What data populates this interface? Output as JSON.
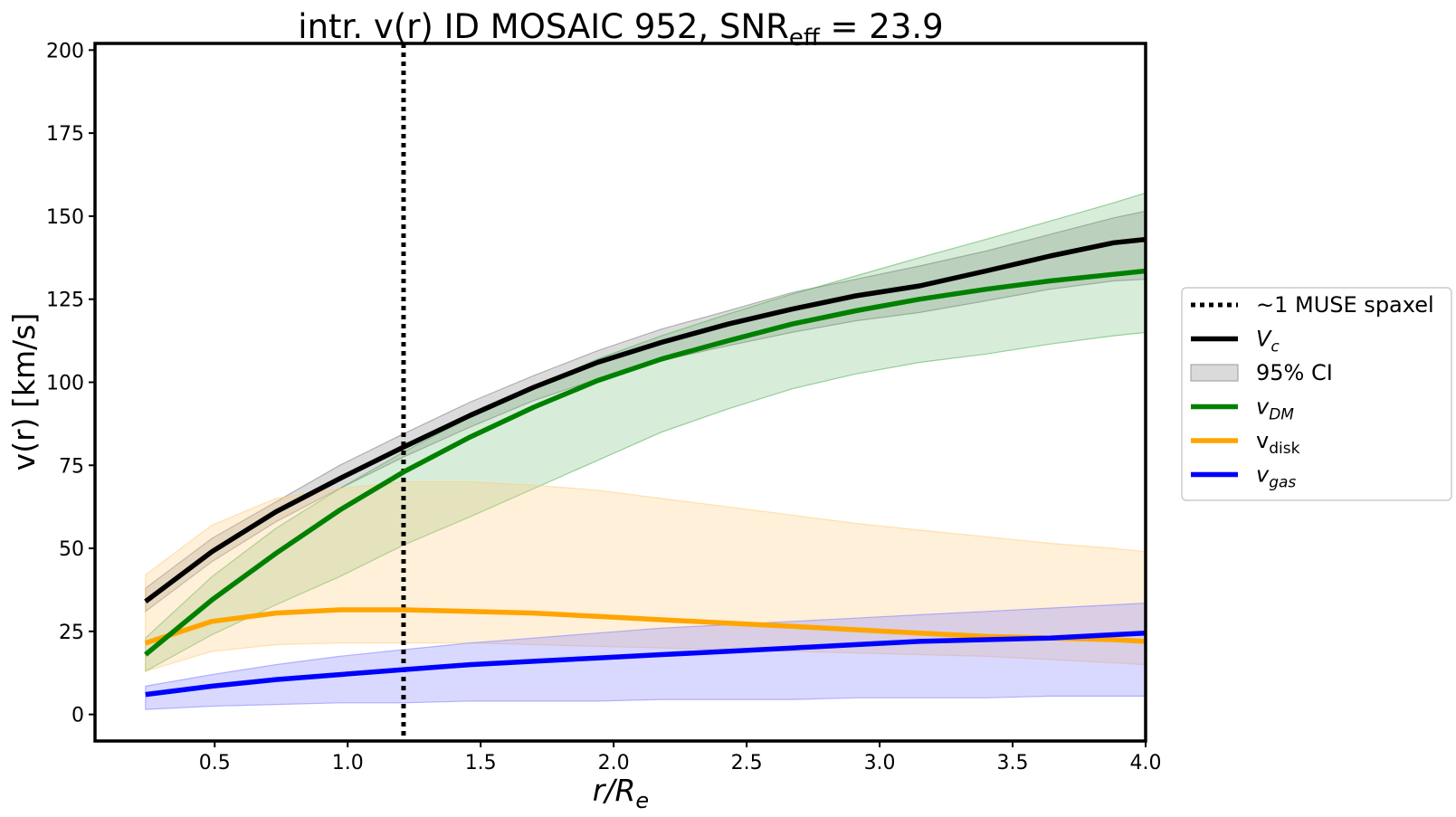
{
  "chart_data": {
    "type": "line",
    "title": "intr. v(r) ID MOSAIC 952, SNR",
    "title_snr_subscript": "eff",
    "title_snr_value": " = 23.9",
    "xlabel_main": "r/R",
    "xlabel_sub": "e",
    "ylabel": "v(r) [km/s]",
    "xlim": [
      0.05,
      4.0
    ],
    "ylim": [
      -8,
      202
    ],
    "xticks": [
      0.5,
      1.0,
      1.5,
      2.0,
      2.5,
      3.0,
      3.5,
      4.0
    ],
    "xtick_labels": [
      "0.5",
      "1.0",
      "1.5",
      "2.0",
      "2.5",
      "3.0",
      "3.5",
      "4.0"
    ],
    "yticks": [
      0,
      25,
      50,
      75,
      100,
      125,
      150,
      175,
      200
    ],
    "ytick_labels": [
      "0",
      "25",
      "50",
      "75",
      "100",
      "125",
      "150",
      "175",
      "200"
    ],
    "x": [
      0.24,
      0.49,
      0.73,
      0.97,
      1.21,
      1.46,
      1.7,
      1.94,
      2.18,
      2.43,
      2.67,
      2.91,
      3.15,
      3.4,
      3.64,
      3.88,
      4.0
    ],
    "muse_spaxel_x": 1.21,
    "series": [
      {
        "name": "V_c",
        "color": "#000000",
        "values": [
          34,
          49,
          61,
          71,
          80.5,
          90,
          98.5,
          106,
          112,
          117.5,
          122,
          126,
          129,
          133.5,
          138,
          142,
          143
        ],
        "lower": [
          31,
          46,
          58,
          68,
          77.5,
          86.5,
          94.5,
          101,
          106.5,
          111,
          115,
          118.5,
          121,
          124.5,
          128,
          130.5,
          131
        ],
        "upper": [
          38,
          53,
          64,
          75,
          84.5,
          94,
          102,
          109.5,
          116,
          121.5,
          127,
          131,
          135,
          139.5,
          144.5,
          149.5,
          151.5
        ]
      },
      {
        "name": "v_DM",
        "color": "#008000",
        "values": [
          18,
          34.5,
          48.5,
          61.5,
          73,
          83.5,
          92.5,
          100.5,
          107,
          112.5,
          117.5,
          121.5,
          125,
          128,
          130.5,
          132.5,
          133.5
        ],
        "lower": [
          13,
          24,
          33,
          41.5,
          51,
          59.5,
          68,
          76.5,
          85,
          92,
          98,
          102.5,
          106,
          108.5,
          111.5,
          114,
          115
        ],
        "upper": [
          23,
          41.5,
          56,
          68,
          79,
          89.5,
          98.5,
          107,
          114,
          120.5,
          126.5,
          132,
          137.5,
          143,
          148.5,
          154,
          157
        ]
      },
      {
        "name": "v_disk",
        "color": "#FFA500",
        "values": [
          21.5,
          28,
          30.5,
          31.5,
          31.5,
          31,
          30.5,
          29.5,
          28.5,
          27.5,
          26.5,
          25.5,
          24.5,
          23.5,
          23,
          22.5,
          22
        ],
        "lower": [
          13,
          19,
          21,
          21.5,
          21.5,
          21.5,
          21,
          20.5,
          20,
          19.5,
          19,
          18.5,
          18,
          17.5,
          16.5,
          15.5,
          15
        ],
        "upper": [
          42,
          57,
          65,
          68,
          70,
          70,
          69,
          67.5,
          65,
          62.5,
          60,
          57.5,
          55.5,
          53.5,
          51.5,
          50,
          49
        ]
      },
      {
        "name": "v_gas",
        "color": "#0000FF",
        "values": [
          6,
          8.5,
          10.5,
          12,
          13.5,
          15,
          16,
          17,
          18,
          19,
          20,
          21,
          22,
          22.5,
          23,
          24,
          24.5
        ],
        "lower": [
          1.5,
          2.5,
          3,
          3.5,
          3.5,
          4,
          4,
          4,
          4.5,
          4.5,
          4.5,
          5,
          5,
          5,
          5.5,
          5.5,
          5.5
        ],
        "upper": [
          8.5,
          12,
          15,
          17.5,
          19.5,
          21.5,
          23,
          24.5,
          26,
          27,
          28,
          29,
          30,
          31,
          32,
          33,
          33.5
        ]
      }
    ],
    "legend": {
      "placement": "right-outside",
      "entries": [
        {
          "label": "~1 MUSE spaxel",
          "kind": "dotted-line",
          "color": "#000000"
        },
        {
          "label": "V",
          "sub": "c",
          "italic": true,
          "kind": "line",
          "color": "#000000"
        },
        {
          "label": "95% CI",
          "kind": "patch",
          "color": "#BBBBBB"
        },
        {
          "label": "v",
          "sub": "DM",
          "italic": true,
          "kind": "line",
          "color": "#008000"
        },
        {
          "label": "v",
          "sub": "disk",
          "italic": false,
          "kind": "line",
          "color": "#FFA500"
        },
        {
          "label": "v",
          "sub": "gas",
          "italic": true,
          "kind": "line",
          "color": "#0000FF"
        }
      ]
    },
    "band_colors": {
      "V_c": "#7f7f7f",
      "v_DM": "#4caf50",
      "v_disk": "#FFCC80",
      "v_gas": "#8080FF"
    }
  }
}
